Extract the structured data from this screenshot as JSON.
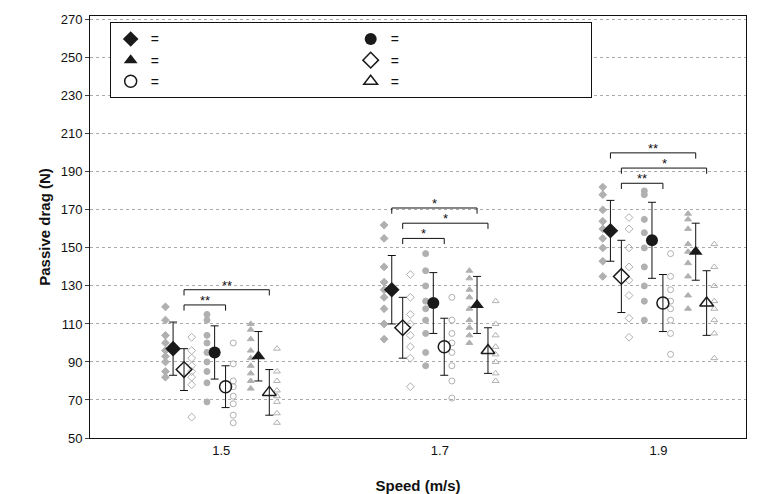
{
  "chart_data": {
    "type": "scatter",
    "x_label": "Speed (m/s)",
    "y_label": "Passive drag (N)",
    "categories": [
      "1.5",
      "1.7",
      "1.9"
    ],
    "ylim": [
      50,
      272
    ],
    "yticks": [
      50,
      70,
      90,
      110,
      130,
      150,
      170,
      190,
      210,
      230,
      250,
      270
    ],
    "grid": true,
    "legend": "upper left",
    "series": [
      {
        "name": "=",
        "color": "#1a1a1a",
        "marker": "diamond",
        "values": [
          97,
          128,
          159
        ],
        "error": [
          14,
          18,
          16
        ],
        "individuals": [
          [
            119,
            112,
            104,
            100,
            96,
            93,
            90,
            85,
            82
          ],
          [
            162,
            155,
            140,
            132,
            128,
            124,
            118,
            110,
            102
          ],
          [
            182,
            178,
            170,
            164,
            160,
            155,
            150,
            143,
            135
          ]
        ]
      },
      {
        "name": "=",
        "color": "#1a1a1a",
        "marker": "circle",
        "values": [
          95,
          121,
          154
        ],
        "error": [
          14,
          16,
          20
        ],
        "individuals": [
          [
            115,
            112,
            104,
            100,
            95,
            90,
            85,
            79,
            69
          ],
          [
            147,
            138,
            130,
            122,
            118,
            112,
            105,
            95,
            88
          ],
          [
            180,
            178,
            165,
            158,
            150,
            140,
            130,
            122,
            112
          ]
        ]
      },
      {
        "name": "=",
        "color": "#1a1a1a",
        "marker": "triangle-up",
        "values": [
          93,
          120,
          148
        ],
        "error": [
          13,
          15,
          15
        ],
        "individuals": [
          [
            110,
            107,
            102,
            96,
            92,
            88,
            84,
            80,
            76
          ],
          [
            138,
            134,
            128,
            124,
            118,
            112,
            108,
            104,
            100
          ],
          [
            168,
            165,
            160,
            152,
            148,
            142,
            135,
            125,
            118
          ]
        ]
      },
      {
        "name": "=",
        "color": "#1a1a1a",
        "marker": "diamond-open",
        "values": [
          86,
          108,
          135
        ],
        "error": [
          11,
          16,
          19
        ],
        "individuals": [
          [
            103,
            96,
            92,
            88,
            85,
            82,
            78,
            61
          ],
          [
            136,
            124,
            115,
            110,
            104,
            98,
            92,
            77
          ],
          [
            166,
            160,
            150,
            140,
            133,
            125,
            113,
            103
          ]
        ]
      },
      {
        "name": "=",
        "color": "#1a1a1a",
        "marker": "circle-open",
        "values": [
          77,
          98,
          121
        ],
        "error": [
          11,
          15,
          15
        ],
        "individuals": [
          [
            100,
            89,
            80,
            77,
            72,
            68,
            62,
            58
          ],
          [
            124,
            112,
            105,
            100,
            95,
            88,
            80,
            71
          ],
          [
            147,
            135,
            128,
            122,
            118,
            112,
            105,
            94
          ]
        ]
      },
      {
        "name": "=",
        "color": "#1a1a1a",
        "marker": "triangle-up-open",
        "values": [
          74,
          96,
          121
        ],
        "error": [
          12,
          12,
          17
        ],
        "individuals": [
          [
            97,
            85,
            80,
            75,
            72,
            69,
            63,
            58
          ],
          [
            122,
            110,
            104,
            98,
            94,
            90,
            84,
            80
          ],
          [
            152,
            140,
            130,
            122,
            118,
            112,
            105,
            92
          ]
        ]
      }
    ],
    "significance": [
      {
        "category": "1.5",
        "from": 3,
        "to": 4,
        "label": "**"
      },
      {
        "category": "1.5",
        "from": 3,
        "to": 5,
        "label": "**"
      },
      {
        "category": "1.7",
        "from": 3,
        "to": 4,
        "label": "*"
      },
      {
        "category": "1.7",
        "from": 3,
        "to": 5,
        "label": "*"
      },
      {
        "category": "1.7",
        "from": 0,
        "to": 2,
        "label": "*"
      },
      {
        "category": "1.9",
        "from": 3,
        "to": 4,
        "label": "**"
      },
      {
        "category": "1.9",
        "from": 3,
        "to": 5,
        "label": "*"
      },
      {
        "category": "1.9",
        "from": 0,
        "to": 2,
        "label": "**"
      }
    ]
  }
}
